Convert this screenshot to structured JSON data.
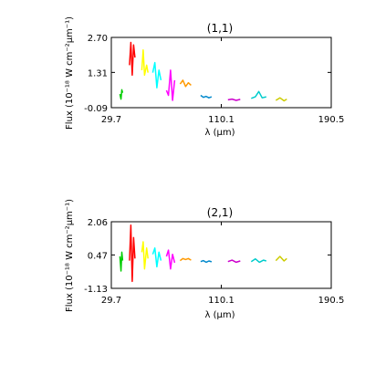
{
  "chart_data": [
    {
      "type": "line",
      "title": "(1,1)",
      "xlabel": "λ (μm)",
      "ylabel": "Flux (10⁻¹⁸ W cm⁻²μm⁻¹)",
      "xlim": [
        29.7,
        190.5
      ],
      "ylim": [
        -0.09,
        2.7
      ],
      "xticks": [
        "29.7",
        "110.1",
        "190.5"
      ],
      "yticks": [
        "-0.09",
        "1.31",
        "2.70"
      ],
      "grid": false,
      "series": [
        {
          "color": "#00cc00",
          "x": [
            36.0,
            36.8,
            37.4,
            38.0
          ],
          "y": [
            0.45,
            0.25,
            0.62,
            0.5
          ]
        },
        {
          "color": "#ff0000",
          "x": [
            43.0,
            44.0,
            45.0,
            46.0,
            47.0
          ],
          "y": [
            1.6,
            2.5,
            1.2,
            2.4,
            1.9
          ]
        },
        {
          "color": "#ffff00",
          "x": [
            52.0,
            53.0,
            54.0,
            55.5,
            56.5
          ],
          "y": [
            1.4,
            2.2,
            1.2,
            1.6,
            1.3
          ]
        },
        {
          "color": "#00ffff",
          "x": [
            60.0,
            61.5,
            63.0,
            64.5,
            66.0
          ],
          "y": [
            1.3,
            1.7,
            0.7,
            1.4,
            1.0
          ]
        },
        {
          "color": "#ff00ff",
          "x": [
            70.0,
            71.5,
            73.0,
            74.5,
            76.0
          ],
          "y": [
            0.6,
            0.4,
            1.4,
            0.2,
            1.0
          ]
        },
        {
          "color": "#ff9900",
          "x": [
            80.0,
            82.0,
            84.0,
            86.0,
            88.0
          ],
          "y": [
            0.85,
            1.0,
            0.75,
            0.9,
            0.8
          ]
        },
        {
          "color": "#0088cc",
          "x": [
            95.0,
            97.0,
            99.0,
            101.0,
            103.0
          ],
          "y": [
            0.4,
            0.32,
            0.36,
            0.3,
            0.34
          ]
        },
        {
          "color": "#cc00cc",
          "x": [
            115.0,
            118.0,
            121.0,
            124.0
          ],
          "y": [
            0.22,
            0.25,
            0.2,
            0.24
          ]
        },
        {
          "color": "#00cccc",
          "x": [
            132.0,
            135.0,
            137.5,
            140.0,
            143.0
          ],
          "y": [
            0.28,
            0.34,
            0.55,
            0.3,
            0.34
          ]
        },
        {
          "color": "#cccc00",
          "x": [
            150.0,
            153.0,
            156.0,
            158.0
          ],
          "y": [
            0.2,
            0.3,
            0.18,
            0.25
          ]
        }
      ]
    },
    {
      "type": "line",
      "title": "(2,1)",
      "xlabel": "λ (μm)",
      "ylabel": "Flux (10⁻¹⁸ W cm⁻²μm⁻¹)",
      "xlim": [
        29.7,
        190.5
      ],
      "ylim": [
        -1.13,
        2.06
      ],
      "xticks": [
        "29.7",
        "110.1",
        "190.5"
      ],
      "yticks": [
        "-1.13",
        "0.47",
        "2.06"
      ],
      "grid": false,
      "series": [
        {
          "color": "#00cc00",
          "x": [
            36.0,
            36.8,
            37.4,
            38.0
          ],
          "y": [
            0.4,
            -0.3,
            0.6,
            0.2
          ]
        },
        {
          "color": "#ff0000",
          "x": [
            43.0,
            44.0,
            45.0,
            46.0,
            47.0
          ],
          "y": [
            0.2,
            1.9,
            -0.8,
            1.3,
            0.3
          ]
        },
        {
          "color": "#ffff00",
          "x": [
            52.0,
            53.0,
            54.0,
            55.5,
            56.5
          ],
          "y": [
            0.6,
            1.1,
            -0.2,
            0.8,
            0.3
          ]
        },
        {
          "color": "#00ffff",
          "x": [
            60.0,
            61.5,
            63.0,
            64.5,
            66.0
          ],
          "y": [
            0.5,
            0.8,
            -0.1,
            0.6,
            0.2
          ]
        },
        {
          "color": "#ff00ff",
          "x": [
            70.0,
            71.5,
            73.0,
            74.5,
            76.0
          ],
          "y": [
            0.4,
            0.7,
            -0.2,
            0.5,
            0.1
          ]
        },
        {
          "color": "#ff9900",
          "x": [
            80.0,
            82.0,
            84.0,
            86.0,
            88.0
          ],
          "y": [
            0.2,
            0.3,
            0.25,
            0.3,
            0.22
          ]
        },
        {
          "color": "#0088cc",
          "x": [
            95.0,
            97.0,
            99.0,
            101.0,
            103.0
          ],
          "y": [
            0.15,
            0.2,
            0.12,
            0.18,
            0.14
          ]
        },
        {
          "color": "#cc00cc",
          "x": [
            115.0,
            118.0,
            121.0,
            124.0
          ],
          "y": [
            0.15,
            0.22,
            0.12,
            0.18
          ]
        },
        {
          "color": "#00cccc",
          "x": [
            132.0,
            135.0,
            138.0,
            141.0,
            143.0
          ],
          "y": [
            0.15,
            0.28,
            0.12,
            0.22,
            0.18
          ]
        },
        {
          "color": "#cccc00",
          "x": [
            150.0,
            153.0,
            156.0,
            158.0
          ],
          "y": [
            0.2,
            0.4,
            0.18,
            0.3
          ]
        }
      ]
    }
  ]
}
